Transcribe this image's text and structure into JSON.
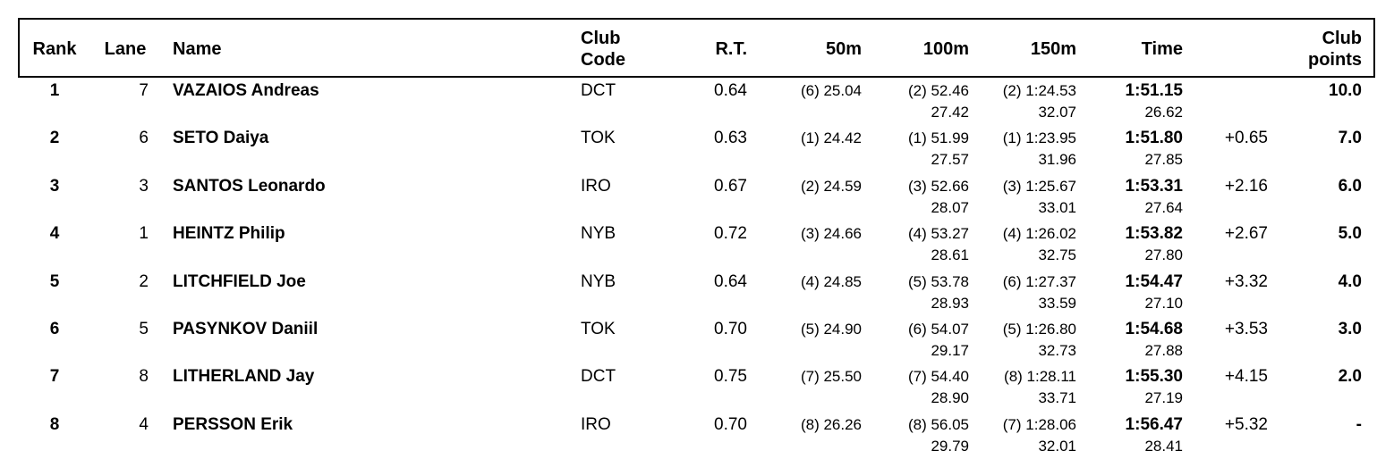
{
  "headers": {
    "rank": "Rank",
    "lane": "Lane",
    "name": "Name",
    "club_code_1": "Club",
    "club_code_2": "Code",
    "rt": "R.T.",
    "m50": "50m",
    "m100": "100m",
    "m150": "150m",
    "time": "Time",
    "club_points_1": "Club",
    "club_points_2": "points"
  },
  "rows": [
    {
      "rank": "1",
      "lane": "7",
      "name": "VAZAIOS Andreas",
      "club": "DCT",
      "rt": "0.64",
      "s50": "(6) 25.04",
      "s100": "(2) 52.46",
      "sp100": "27.42",
      "s150": "(2) 1:24.53",
      "sp150": "32.07",
      "time": "1:51.15",
      "sptime": "26.62",
      "behind": "",
      "points": "10.0"
    },
    {
      "rank": "2",
      "lane": "6",
      "name": "SETO Daiya",
      "club": "TOK",
      "rt": "0.63",
      "s50": "(1) 24.42",
      "s100": "(1) 51.99",
      "sp100": "27.57",
      "s150": "(1) 1:23.95",
      "sp150": "31.96",
      "time": "1:51.80",
      "sptime": "27.85",
      "behind": "+0.65",
      "points": "7.0"
    },
    {
      "rank": "3",
      "lane": "3",
      "name": "SANTOS Leonardo",
      "club": "IRO",
      "rt": "0.67",
      "s50": "(2) 24.59",
      "s100": "(3) 52.66",
      "sp100": "28.07",
      "s150": "(3) 1:25.67",
      "sp150": "33.01",
      "time": "1:53.31",
      "sptime": "27.64",
      "behind": "+2.16",
      "points": "6.0"
    },
    {
      "rank": "4",
      "lane": "1",
      "name": "HEINTZ Philip",
      "club": "NYB",
      "rt": "0.72",
      "s50": "(3) 24.66",
      "s100": "(4) 53.27",
      "sp100": "28.61",
      "s150": "(4) 1:26.02",
      "sp150": "32.75",
      "time": "1:53.82",
      "sptime": "27.80",
      "behind": "+2.67",
      "points": "5.0"
    },
    {
      "rank": "5",
      "lane": "2",
      "name": "LITCHFIELD Joe",
      "club": "NYB",
      "rt": "0.64",
      "s50": "(4) 24.85",
      "s100": "(5) 53.78",
      "sp100": "28.93",
      "s150": "(6) 1:27.37",
      "sp150": "33.59",
      "time": "1:54.47",
      "sptime": "27.10",
      "behind": "+3.32",
      "points": "4.0"
    },
    {
      "rank": "6",
      "lane": "5",
      "name": "PASYNKOV Daniil",
      "club": "TOK",
      "rt": "0.70",
      "s50": "(5) 24.90",
      "s100": "(6) 54.07",
      "sp100": "29.17",
      "s150": "(5) 1:26.80",
      "sp150": "32.73",
      "time": "1:54.68",
      "sptime": "27.88",
      "behind": "+3.53",
      "points": "3.0"
    },
    {
      "rank": "7",
      "lane": "8",
      "name": "LITHERLAND Jay",
      "club": "DCT",
      "rt": "0.75",
      "s50": "(7) 25.50",
      "s100": "(7) 54.40",
      "sp100": "28.90",
      "s150": "(8) 1:28.11",
      "sp150": "33.71",
      "time": "1:55.30",
      "sptime": "27.19",
      "behind": "+4.15",
      "points": "2.0"
    },
    {
      "rank": "8",
      "lane": "4",
      "name": "PERSSON Erik",
      "club": "IRO",
      "rt": "0.70",
      "s50": "(8) 26.26",
      "s100": "(8) 56.05",
      "sp100": "29.79",
      "s150": "(7) 1:28.06",
      "sp150": "32.01",
      "time": "1:56.47",
      "sptime": "28.41",
      "behind": "+5.32",
      "points": "-"
    }
  ]
}
